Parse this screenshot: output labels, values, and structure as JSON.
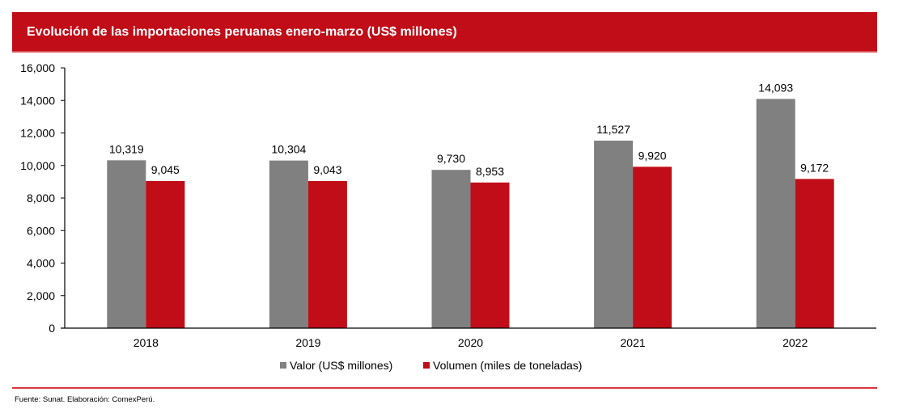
{
  "header": {
    "title": "Evolución de las importaciones peruanas enero-marzo (US$ millones)"
  },
  "footer": {
    "source": "Fuente: Sunat. Elaboración: ComexPerú."
  },
  "colors": {
    "title_bg": "#c00d17",
    "valor": "#808080",
    "volumen": "#c00d17",
    "rule": "#d9353e"
  },
  "legend": [
    {
      "label": "Valor (US$ millones)",
      "color": "#808080"
    },
    {
      "label": "Volumen (miles de toneladas)",
      "color": "#c00d17"
    }
  ],
  "chart_data": {
    "type": "bar",
    "title": "Evolución de las importaciones peruanas enero-marzo (US$ millones)",
    "categories": [
      "2018",
      "2019",
      "2020",
      "2021",
      "2022"
    ],
    "series": [
      {
        "name": "Valor (US$ millones)",
        "color": "#808080",
        "values": [
          10319,
          10304,
          9730,
          11527,
          14093
        ],
        "labels": [
          "10,319",
          "10,304",
          "9,730",
          "11,527",
          "14,093"
        ]
      },
      {
        "name": "Volumen (miles de toneladas)",
        "color": "#c00d17",
        "values": [
          9045,
          9043,
          8953,
          9920,
          9172
        ],
        "labels": [
          "9,045",
          "9,043",
          "8,953",
          "9,920",
          "9,172"
        ]
      }
    ],
    "ylim": [
      0,
      16000
    ],
    "yticks": [
      0,
      2000,
      4000,
      6000,
      8000,
      10000,
      12000,
      14000,
      16000
    ],
    "ytick_labels": [
      "0",
      "2,000",
      "4,000",
      "6,000",
      "8,000",
      "10,000",
      "12,000",
      "14,000",
      "16,000"
    ],
    "xlabel": "",
    "ylabel": "",
    "grid": false,
    "legend_position": "bottom"
  }
}
